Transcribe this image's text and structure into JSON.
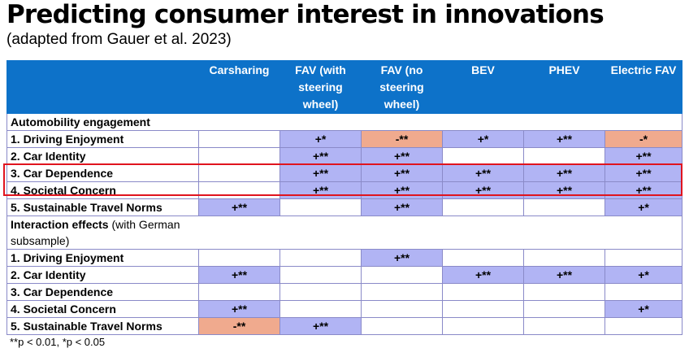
{
  "title": "Predicting consumer interest in innovations",
  "subtitle": "(adapted from Gauer et al. 2023)",
  "columns": [
    "Carsharing",
    "FAV (with steering wheel)",
    "FAV (no steering wheel)",
    "BEV",
    "PHEV",
    "Electric FAV"
  ],
  "colors": {
    "header": "#0d72c9",
    "positive": "#b1b4f4",
    "negative": "#f0aa8e",
    "highlight": "#e0141e"
  },
  "sections": [
    {
      "heading": "Automobility engagement",
      "heading_note": "",
      "rows": [
        {
          "label": "1. Driving Enjoyment",
          "cells": [
            {
              "v": "",
              "c": ""
            },
            {
              "v": "+*",
              "c": "blue"
            },
            {
              "v": "-**",
              "c": "peach"
            },
            {
              "v": "+*",
              "c": "blue"
            },
            {
              "v": "+**",
              "c": "blue"
            },
            {
              "v": "-*",
              "c": "peach"
            }
          ]
        },
        {
          "label": "2. Car Identity",
          "cells": [
            {
              "v": "",
              "c": ""
            },
            {
              "v": "+**",
              "c": "blue"
            },
            {
              "v": "+**",
              "c": "blue"
            },
            {
              "v": "",
              "c": ""
            },
            {
              "v": "",
              "c": ""
            },
            {
              "v": "+**",
              "c": "blue"
            }
          ]
        },
        {
          "label": "3. Car Dependence",
          "cells": [
            {
              "v": "",
              "c": ""
            },
            {
              "v": "+**",
              "c": "blue"
            },
            {
              "v": "+**",
              "c": "blue"
            },
            {
              "v": "+**",
              "c": "blue"
            },
            {
              "v": "+**",
              "c": "blue"
            },
            {
              "v": "+**",
              "c": "blue"
            }
          ]
        },
        {
          "label": "4. Societal Concern",
          "cells": [
            {
              "v": "",
              "c": ""
            },
            {
              "v": "+**",
              "c": "blue"
            },
            {
              "v": "+**",
              "c": "blue"
            },
            {
              "v": "+**",
              "c": "blue"
            },
            {
              "v": "+**",
              "c": "blue"
            },
            {
              "v": "+**",
              "c": "blue"
            }
          ]
        },
        {
          "label": "5. Sustainable Travel Norms",
          "cells": [
            {
              "v": "+**",
              "c": "blue"
            },
            {
              "v": "",
              "c": ""
            },
            {
              "v": "+**",
              "c": "blue"
            },
            {
              "v": "",
              "c": ""
            },
            {
              "v": "",
              "c": ""
            },
            {
              "v": "+*",
              "c": "blue"
            }
          ]
        }
      ]
    },
    {
      "heading": "Interaction effects",
      "heading_note": " (with German subsample)",
      "rows": [
        {
          "label": "1. Driving Enjoyment",
          "cells": [
            {
              "v": "",
              "c": ""
            },
            {
              "v": "",
              "c": ""
            },
            {
              "v": "+**",
              "c": "blue"
            },
            {
              "v": "",
              "c": ""
            },
            {
              "v": "",
              "c": ""
            },
            {
              "v": "",
              "c": ""
            }
          ]
        },
        {
          "label": "2. Car Identity",
          "cells": [
            {
              "v": "+**",
              "c": "blue"
            },
            {
              "v": "",
              "c": ""
            },
            {
              "v": "",
              "c": ""
            },
            {
              "v": "+**",
              "c": "blue"
            },
            {
              "v": "+**",
              "c": "blue"
            },
            {
              "v": "+*",
              "c": "blue"
            }
          ]
        },
        {
          "label": "3. Car Dependence",
          "cells": [
            {
              "v": "",
              "c": ""
            },
            {
              "v": "",
              "c": ""
            },
            {
              "v": "",
              "c": ""
            },
            {
              "v": "",
              "c": ""
            },
            {
              "v": "",
              "c": ""
            },
            {
              "v": "",
              "c": ""
            }
          ]
        },
        {
          "label": "4. Societal Concern",
          "cells": [
            {
              "v": "+**",
              "c": "blue"
            },
            {
              "v": "",
              "c": ""
            },
            {
              "v": "",
              "c": ""
            },
            {
              "v": "",
              "c": ""
            },
            {
              "v": "",
              "c": ""
            },
            {
              "v": "+*",
              "c": "blue"
            }
          ]
        },
        {
          "label": "5. Sustainable Travel Norms",
          "cells": [
            {
              "v": "-**",
              "c": "peach"
            },
            {
              "v": "+**",
              "c": "blue"
            },
            {
              "v": "",
              "c": ""
            },
            {
              "v": "",
              "c": ""
            },
            {
              "v": "",
              "c": ""
            },
            {
              "v": "",
              "c": ""
            }
          ]
        }
      ]
    }
  ],
  "footnote": "**p < 0.01, *p < 0.05"
}
